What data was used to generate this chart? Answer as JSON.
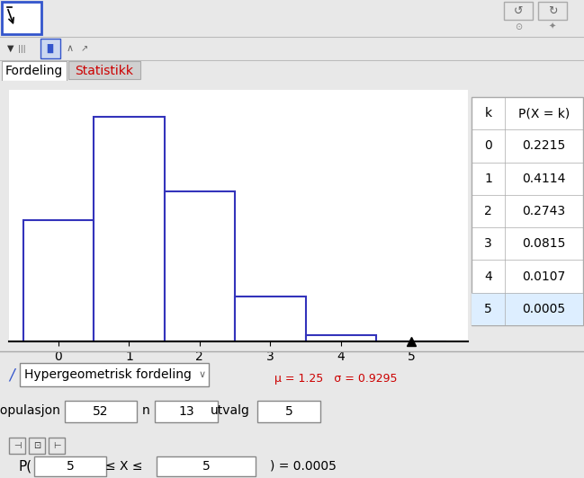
{
  "title": "Fordeling",
  "tab2": "Statistikk",
  "probabilities": [
    0.2215,
    0.4114,
    0.2743,
    0.0815,
    0.0107,
    0.0005
  ],
  "k_values": [
    0,
    1,
    2,
    3,
    4,
    5
  ],
  "highlight_row": 5,
  "highlight_color": "#ddeeff",
  "mu": 1.25,
  "sigma": 0.9295,
  "distribution": "Hypergeometrisk fordeling",
  "populasjon": 52,
  "n": 13,
  "utvalg": 5,
  "p_lower": 5,
  "p_upper": 5,
  "p_result": 0.0005,
  "bg_color": "#e8e8e8",
  "plot_bg": "#ffffff",
  "bar_outline_color": "#3333bb",
  "table_border": "#bbbbbb"
}
